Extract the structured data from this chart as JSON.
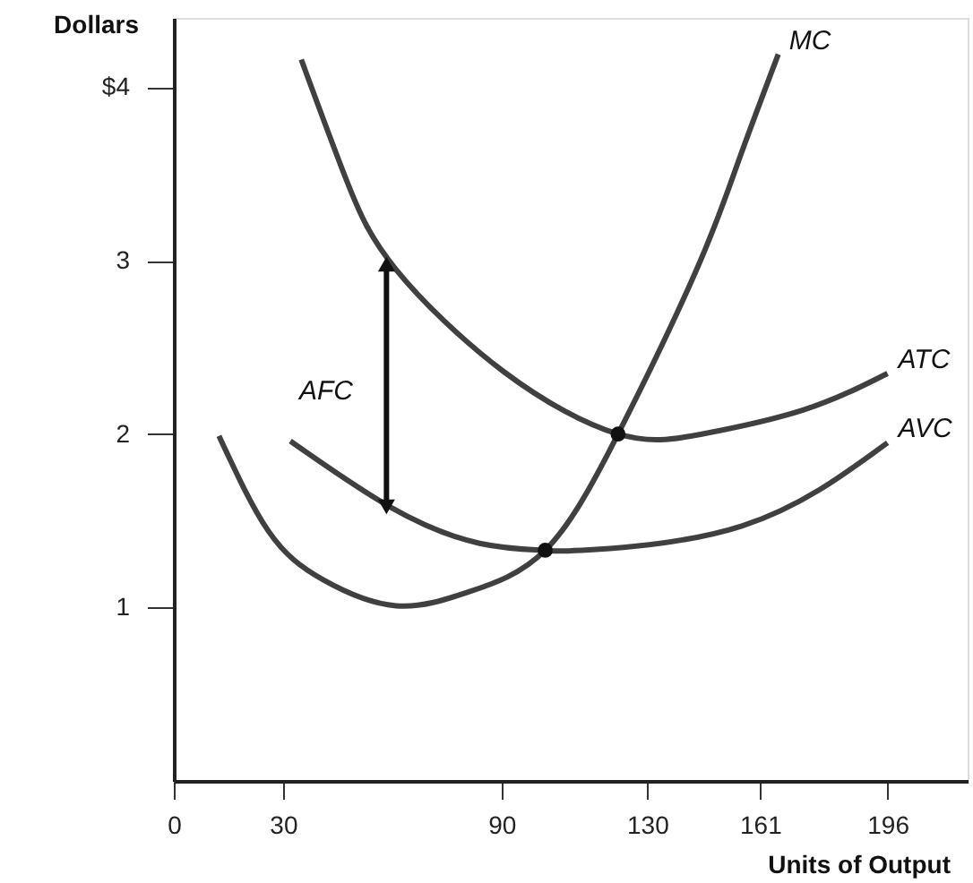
{
  "chart_data": {
    "type": "line",
    "xlabel": "Units of Output",
    "ylabel": "Dollars",
    "xlim": [
      0,
      218
    ],
    "ylim": [
      0,
      4.4
    ],
    "xticks": [
      0,
      30,
      90,
      130,
      161,
      196
    ],
    "yticks": [
      1,
      2,
      3,
      {
        "value": 4,
        "label": "$4"
      }
    ],
    "grid": false,
    "line_style": "solid",
    "series": [
      {
        "name": "MC",
        "marker": "none",
        "color": "#404040",
        "x": [
          12.4,
          26,
          41,
          61,
          81,
          102,
          122,
          143.6,
          155,
          166
        ],
        "values": [
          1.99,
          1.44,
          1.16,
          1.01,
          1.09,
          1.33,
          2.0,
          2.95,
          3.57,
          4.19
        ]
      },
      {
        "name": "ATC",
        "marker": "none",
        "color": "#404040",
        "x": [
          35,
          47.5,
          61,
          90.6,
          122,
          145,
          173,
          196
        ],
        "values": [
          4.16,
          3.46,
          2.95,
          2.36,
          2.0,
          2.0,
          2.14,
          2.35
        ]
      },
      {
        "name": "AVC",
        "marker": "none",
        "color": "#404040",
        "x": [
          32,
          59.4,
          84,
          102,
          112,
          156,
          196
        ],
        "values": [
          1.96,
          1.58,
          1.37,
          1.33,
          1.33,
          1.47,
          1.95
        ]
      },
      {
        "marker": "triangle",
        "color": "#111111",
        "x": [
          58.4,
          58.4
        ],
        "values": [
          2.98,
          1.58
        ]
      },
      {
        "type": "scatter",
        "marker": "circle",
        "color": "#111111",
        "x": [
          102,
          122
        ],
        "values": [
          1.33,
          2.0
        ]
      }
    ],
    "annotations": [
      "AFC"
    ]
  }
}
